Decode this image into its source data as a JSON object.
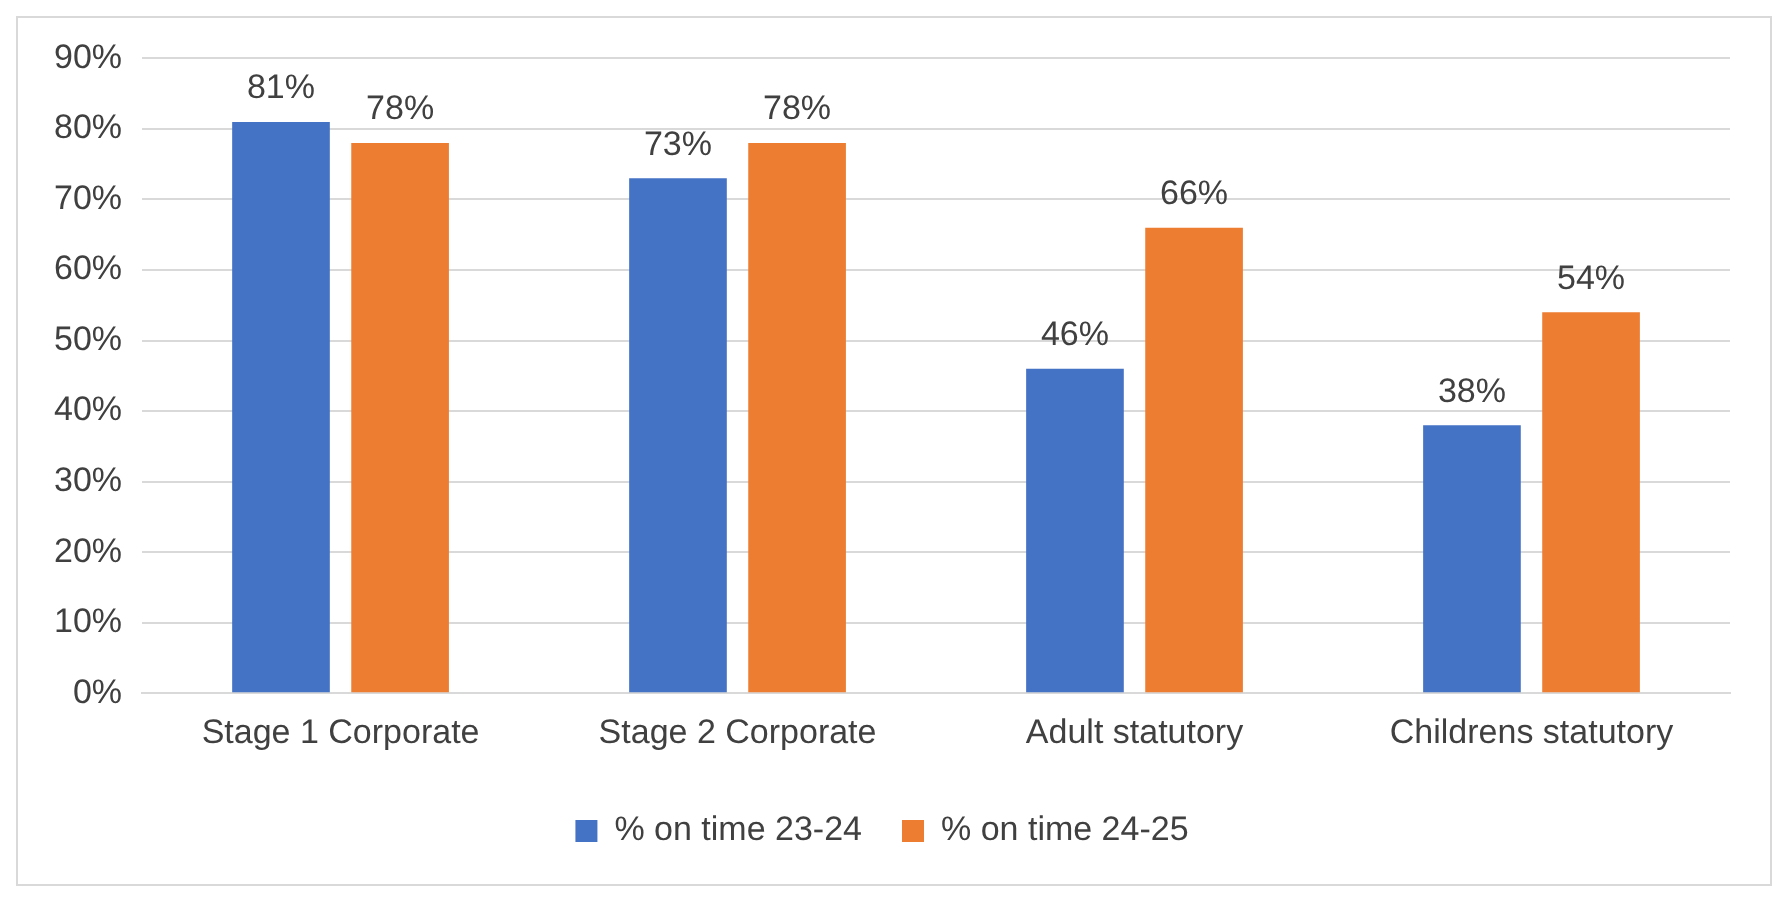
{
  "chart_data": {
    "type": "bar",
    "categories": [
      "Stage 1 Corporate",
      "Stage 2 Corporate",
      "Adult statutory",
      "Childrens statutory"
    ],
    "series": [
      {
        "name": "% on time 23-24",
        "color": "#4472c4",
        "values": [
          81,
          73,
          46,
          38
        ],
        "value_labels": [
          "81%",
          "73%",
          "46%",
          "38%"
        ]
      },
      {
        "name": "% on time 24-25",
        "color": "#ed7d31",
        "values": [
          78,
          78,
          66,
          54
        ],
        "value_labels": [
          "78%",
          "78%",
          "66%",
          "54%"
        ]
      }
    ],
    "ylim": [
      0,
      90
    ],
    "yticks": [
      {
        "value": 0,
        "label": "0%"
      },
      {
        "value": 10,
        "label": "10%"
      },
      {
        "value": 20,
        "label": "20%"
      },
      {
        "value": 30,
        "label": "30%"
      },
      {
        "value": 40,
        "label": "40%"
      },
      {
        "value": 50,
        "label": "50%"
      },
      {
        "value": 60,
        "label": "60%"
      },
      {
        "value": 70,
        "label": "70%"
      },
      {
        "value": 80,
        "label": "80%"
      },
      {
        "value": 90,
        "label": "90%"
      }
    ],
    "grid": "y",
    "legend": "bottom"
  }
}
